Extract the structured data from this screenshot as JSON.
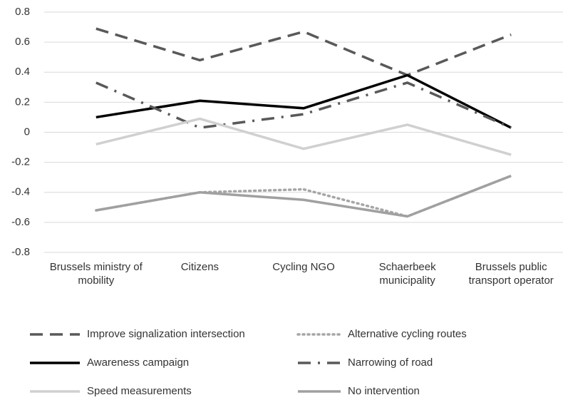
{
  "chart_data": {
    "type": "line",
    "categories": [
      "Brussels ministry of mobility",
      "Citizens",
      "Cycling NGO",
      "Schaerbeek municipality",
      "Brussels public transport operator"
    ],
    "series": [
      {
        "name": "Improve signalization intersection",
        "color": "#595959",
        "dash": "dashed",
        "values": [
          0.69,
          0.48,
          0.67,
          0.38,
          0.65
        ]
      },
      {
        "name": "Alternative cycling routes",
        "color": "#a6a6a6",
        "dash": "dotted",
        "values": [
          -0.52,
          -0.4,
          -0.38,
          -0.56,
          -0.29
        ]
      },
      {
        "name": "Awareness campaign",
        "color": "#000000",
        "dash": "solid",
        "values": [
          0.1,
          0.21,
          0.16,
          0.38,
          0.03
        ]
      },
      {
        "name": "Narrowing of road",
        "color": "#595959",
        "dash": "dashdot",
        "values": [
          0.33,
          0.03,
          0.12,
          0.33,
          0.03
        ]
      },
      {
        "name": "Speed measurements",
        "color": "#d0d0d0",
        "dash": "solid",
        "values": [
          -0.08,
          0.09,
          -0.11,
          0.05,
          -0.15
        ]
      },
      {
        "name": "No intervention",
        "color": "#a0a0a0",
        "dash": "solid",
        "values": [
          -0.52,
          -0.4,
          -0.45,
          -0.56,
          -0.29
        ]
      }
    ],
    "ylim": [
      -0.8,
      0.8
    ],
    "yticks": [
      0.8,
      0.6,
      0.4,
      0.2,
      0,
      -0.2,
      -0.4,
      -0.6,
      -0.8
    ],
    "grid": true,
    "legend": "bottom"
  }
}
